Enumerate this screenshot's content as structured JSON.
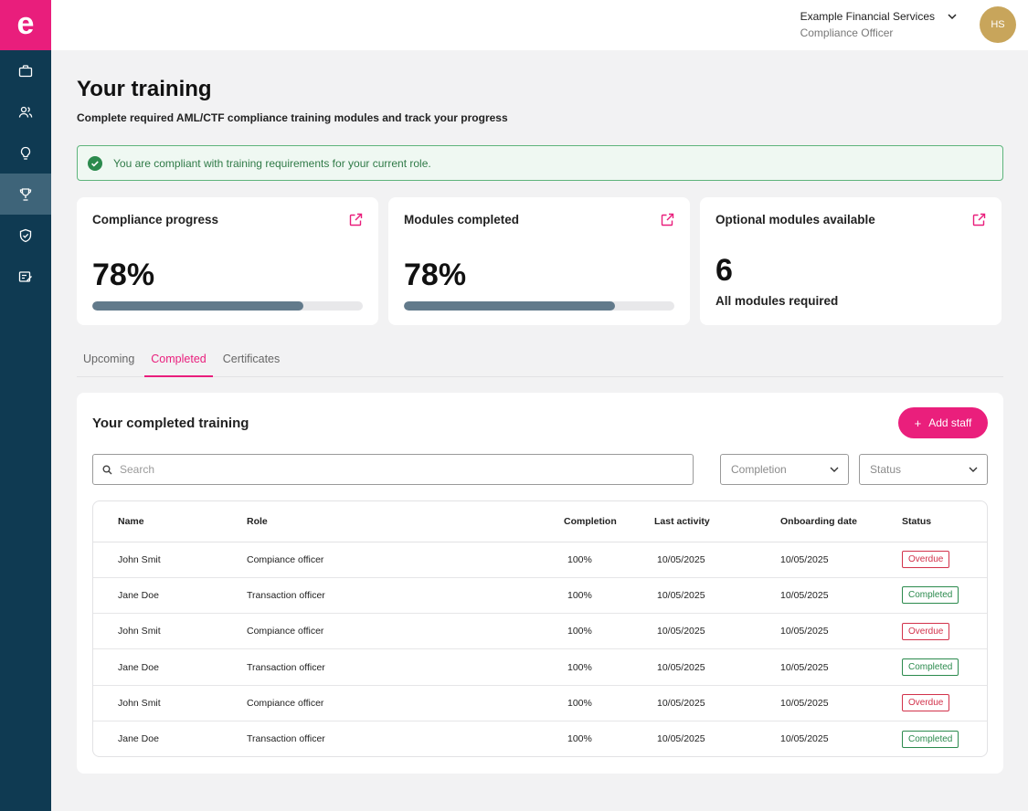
{
  "sidebar": {
    "logo_letter": "e",
    "items": [
      {
        "icon": "briefcase-icon",
        "active": false
      },
      {
        "icon": "users-icon",
        "active": false
      },
      {
        "icon": "lightbulb-icon",
        "active": false
      },
      {
        "icon": "trophy-icon",
        "active": true
      },
      {
        "icon": "shield-check-icon",
        "active": false
      },
      {
        "icon": "edit-note-icon",
        "active": false
      }
    ]
  },
  "header": {
    "org_name": "Example Financial Services",
    "user_role": "Compliance Officer",
    "avatar_initials": "HS"
  },
  "page": {
    "title": "Your training",
    "subtitle": "Complete required AML/CTF compliance training modules and track your progress"
  },
  "alert": {
    "text": "You are compliant with training requirements for your current role."
  },
  "cards": {
    "compliance": {
      "title": "Compliance progress",
      "value": "78%",
      "progress": 0.78
    },
    "modules": {
      "title": "Modules completed",
      "value": "78%",
      "progress": 0.78
    },
    "optional": {
      "title": "Optional modules available",
      "value": "6",
      "note": "All modules required"
    }
  },
  "tabs": [
    "Upcoming",
    "Completed",
    "Certificates"
  ],
  "active_tab": "Completed",
  "panel": {
    "title": "Your completed training",
    "add_button": "Add staff",
    "search_placeholder": "Search",
    "filter_completion": "Completion",
    "filter_status": "Status"
  },
  "table": {
    "headers": {
      "name": "Name",
      "role": "Role",
      "completion": "Completion",
      "last_activity": "Last activity",
      "onboarding": "Onboarding date",
      "status": "Status"
    },
    "rows": [
      {
        "name": "John Smit",
        "role": "Compiance officer",
        "completion": "100%",
        "last": "10/05/2025",
        "onboarding": "10/05/2025",
        "status": "Overdue"
      },
      {
        "name": "Jane Doe",
        "role": "Transaction officer",
        "completion": "100%",
        "last": "10/05/2025",
        "onboarding": "10/05/2025",
        "status": "Completed"
      },
      {
        "name": "John Smit",
        "role": "Compiance officer",
        "completion": "100%",
        "last": "10/05/2025",
        "onboarding": "10/05/2025",
        "status": "Overdue"
      },
      {
        "name": "Jane Doe",
        "role": "Transaction officer",
        "completion": "100%",
        "last": "10/05/2025",
        "onboarding": "10/05/2025",
        "status": "Completed"
      },
      {
        "name": "John Smit",
        "role": "Compiance officer",
        "completion": "100%",
        "last": "10/05/2025",
        "onboarding": "10/05/2025",
        "status": "Overdue"
      },
      {
        "name": "Jane Doe",
        "role": "Transaction officer",
        "completion": "100%",
        "last": "10/05/2025",
        "onboarding": "10/05/2025",
        "status": "Completed"
      }
    ]
  },
  "colors": {
    "brand": "#e91e7c",
    "sidebar": "#0f3a52",
    "sidebar_active": "#3e6479",
    "progress_fill": "#627a8b",
    "success": "#2b8a4d",
    "danger": "#d2324b",
    "avatar": "#c8a55b"
  }
}
